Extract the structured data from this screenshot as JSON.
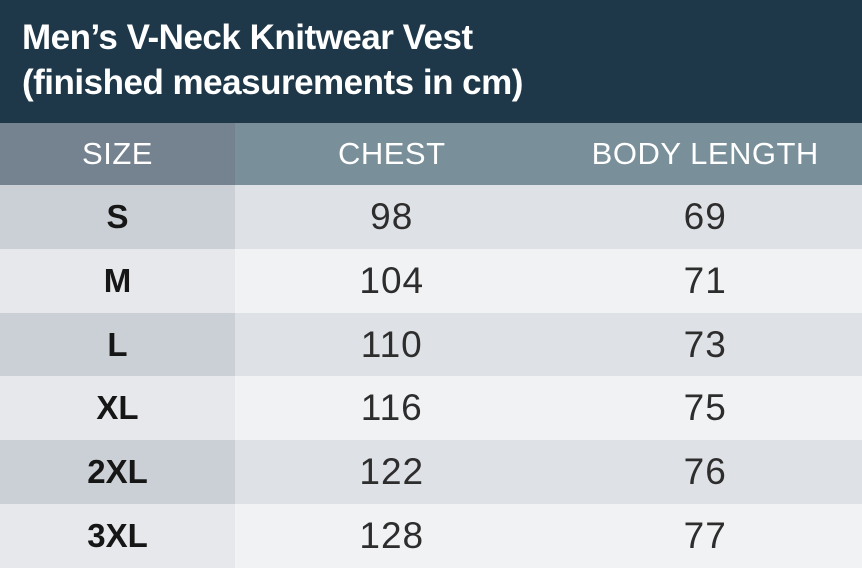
{
  "title": {
    "line1": "Men’s V-Neck Knitwear Vest",
    "line2": "(finished measurements in cm)"
  },
  "table": {
    "columns": [
      "SIZE",
      "CHEST",
      "BODY LENGTH"
    ],
    "rows": [
      {
        "size": "S",
        "chest": "98",
        "body_length": "69"
      },
      {
        "size": "M",
        "chest": "104",
        "body_length": "71"
      },
      {
        "size": "L",
        "chest": "110",
        "body_length": "73"
      },
      {
        "size": "XL",
        "chest": "116",
        "body_length": "75"
      },
      {
        "size": "2XL",
        "chest": "122",
        "body_length": "76"
      },
      {
        "size": "3XL",
        "chest": "128",
        "body_length": "77"
      }
    ]
  },
  "colors": {
    "title_bg": "#1f3849",
    "title_text": "#ffffff",
    "header_size_bg": "#75828f",
    "header_bg": "#798f9a",
    "row_odd_size_bg": "#cbd0d6",
    "row_odd_bg": "#dee1e5",
    "row_even_size_bg": "#e6e8eb",
    "row_even_bg": "#f1f2f4",
    "cell_text": "#2d2d2d"
  },
  "chart_data": {
    "type": "table",
    "title": "Men’s V-Neck Knitwear Vest (finished measurements in cm)",
    "units": "cm",
    "columns": [
      "SIZE",
      "CHEST",
      "BODY LENGTH"
    ],
    "rows": [
      [
        "S",
        98,
        69
      ],
      [
        "M",
        104,
        71
      ],
      [
        "L",
        110,
        73
      ],
      [
        "XL",
        116,
        75
      ],
      [
        "2XL",
        122,
        76
      ],
      [
        "3XL",
        128,
        77
      ]
    ]
  }
}
